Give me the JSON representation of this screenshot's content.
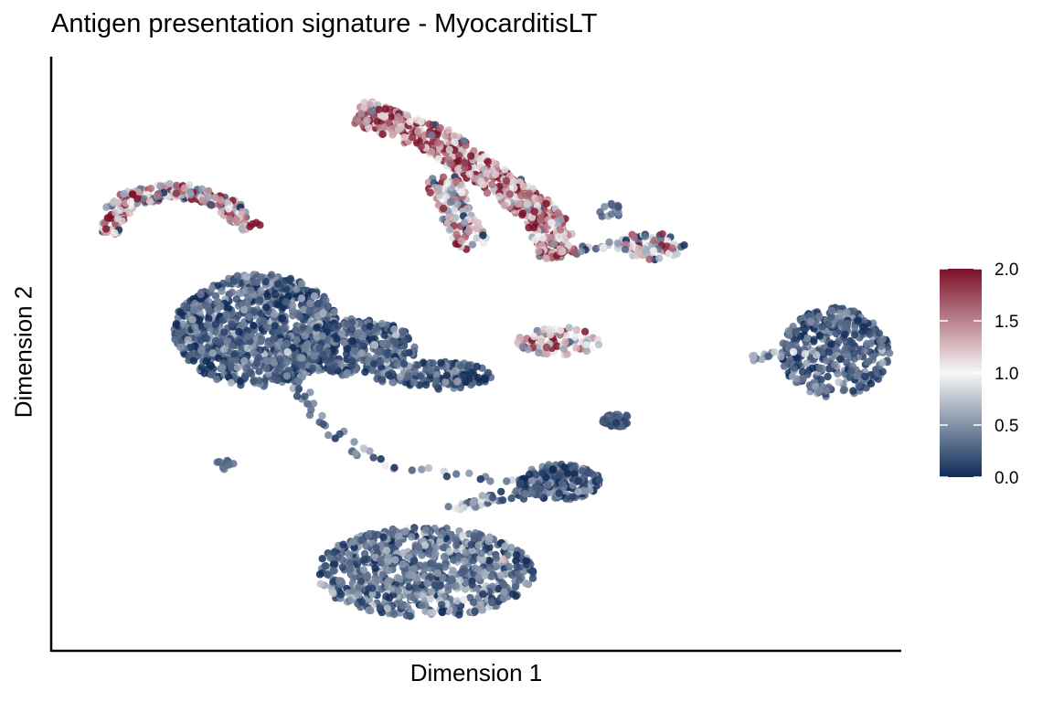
{
  "chart_data": {
    "type": "scatter",
    "title": "Antigen presentation signature - MyocarditisLT",
    "xlabel": "Dimension 1",
    "ylabel": "Dimension 2",
    "xlim": [
      0,
      100
    ],
    "ylim": [
      0,
      100
    ],
    "axis_ticks": false,
    "grid": false,
    "color_scale": {
      "min": 0.0,
      "max": 2.0,
      "ticks": [
        "0.0",
        "0.5",
        "1.0",
        "1.5",
        "2.0"
      ],
      "low_color": "#0f2b57",
      "mid_color": "#f7f7f7",
      "high_color": "#7d1028"
    },
    "legend_position": "right",
    "clusters": [
      {
        "shape": "ellipse",
        "cx": 24,
        "cy": 55,
        "rx": 10,
        "ry": 10,
        "n": 900,
        "mean": 0.25,
        "sd": 0.22
      },
      {
        "shape": "ellipse",
        "cx": 35,
        "cy": 52,
        "rx": 8,
        "ry": 5,
        "n": 420,
        "mean": 0.25,
        "sd": 0.22
      },
      {
        "shape": "ellipse",
        "cx": 45,
        "cy": 47,
        "rx": 7,
        "ry": 2.5,
        "n": 160,
        "mean": 0.25,
        "sd": 0.22
      },
      {
        "shape": "ellipse",
        "cx": 44,
        "cy": 12,
        "rx": 13,
        "ry": 8,
        "n": 800,
        "mean": 0.35,
        "sd": 0.25
      },
      {
        "shape": "ellipse",
        "cx": 60,
        "cy": 28,
        "rx": 5,
        "ry": 3.2,
        "n": 220,
        "mean": 0.25,
        "sd": 0.2
      },
      {
        "shape": "ellipse",
        "cx": 93,
        "cy": 51,
        "rx": 6.5,
        "ry": 8,
        "n": 380,
        "mean": 0.25,
        "sd": 0.2
      },
      {
        "shape": "ellipse",
        "cx": 67,
        "cy": 39,
        "rx": 1.8,
        "ry": 1.2,
        "n": 35,
        "mean": 0.15,
        "sd": 0.1
      },
      {
        "shape": "ellipse",
        "cx": 20,
        "cy": 31,
        "rx": 1.2,
        "ry": 1.0,
        "n": 12,
        "mean": 0.3,
        "sd": 0.1
      },
      {
        "shape": "ellipse",
        "cx": 60,
        "cy": 53,
        "rx": 5,
        "ry": 2.5,
        "n": 80,
        "mean": 1.3,
        "sd": 0.5
      },
      {
        "shape": "ellipse",
        "cx": 71,
        "cy": 70,
        "rx": 4,
        "ry": 2.5,
        "n": 70,
        "mean": 0.9,
        "sd": 0.5
      },
      {
        "shape": "ellipse",
        "cx": 66,
        "cy": 76,
        "rx": 1.5,
        "ry": 1.5,
        "n": 14,
        "mean": 0.3,
        "sd": 0.15
      },
      {
        "shape": "path",
        "points": [
          [
            36,
            94
          ],
          [
            45,
            89
          ],
          [
            52,
            82
          ],
          [
            58,
            76
          ],
          [
            60,
            68
          ]
        ],
        "width": 4.5,
        "n": 620,
        "mean": 1.5,
        "sd": 0.5
      },
      {
        "shape": "path",
        "points": [
          [
            46,
            82
          ],
          [
            48,
            74
          ],
          [
            50,
            70
          ]
        ],
        "width": 4,
        "n": 140,
        "mean": 1.0,
        "sd": 0.6
      },
      {
        "shape": "path",
        "points": [
          [
            6,
            72
          ],
          [
            8,
            78
          ],
          [
            14,
            80
          ],
          [
            20,
            78
          ],
          [
            23,
            73
          ]
        ],
        "width": 2.5,
        "n": 320,
        "mean": 1.2,
        "sd": 0.6
      },
      {
        "shape": "path",
        "points": [
          [
            28,
            47
          ],
          [
            32,
            38
          ],
          [
            37,
            33
          ],
          [
            43,
            30
          ],
          [
            49,
            29
          ],
          [
            55,
            28
          ]
        ],
        "width": 1.5,
        "n": 50,
        "mean": 0.4,
        "sd": 0.3
      },
      {
        "shape": "path",
        "points": [
          [
            47,
            23
          ],
          [
            52,
            25
          ],
          [
            56,
            26
          ]
        ],
        "width": 1.5,
        "n": 40,
        "mean": 0.4,
        "sd": 0.3
      },
      {
        "shape": "path",
        "points": [
          [
            60,
            69
          ],
          [
            65,
            70
          ],
          [
            72,
            69
          ]
        ],
        "width": 1.2,
        "n": 28,
        "mean": 0.9,
        "sd": 0.5
      },
      {
        "shape": "path",
        "points": [
          [
            83,
            50
          ],
          [
            88,
            51
          ]
        ],
        "width": 1.2,
        "n": 14,
        "mean": 0.5,
        "sd": 0.3
      }
    ]
  }
}
